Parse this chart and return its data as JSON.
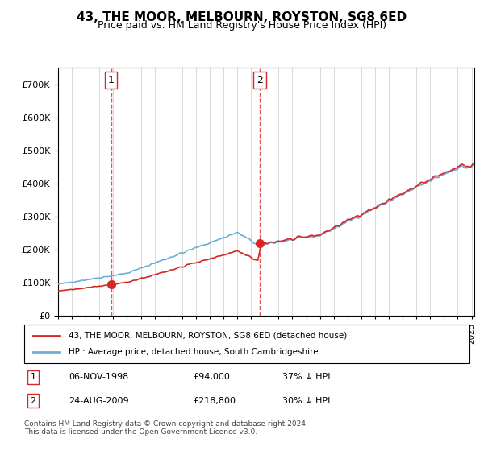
{
  "title": "43, THE MOOR, MELBOURN, ROYSTON, SG8 6ED",
  "subtitle": "Price paid vs. HM Land Registry's House Price Index (HPI)",
  "purchase1_date": "06-NOV-1998",
  "purchase1_price": 94000,
  "purchase1_label": "37% ↓ HPI",
  "purchase1_year": 1998.85,
  "purchase2_date": "24-AUG-2009",
  "purchase2_price": 218800,
  "purchase2_label": "30% ↓ HPI",
  "purchase2_year": 2009.64,
  "legend_line1": "43, THE MOOR, MELBOURN, ROYSTON, SG8 6ED (detached house)",
  "legend_line2": "HPI: Average price, detached house, South Cambridgeshire",
  "footnote": "Contains HM Land Registry data © Crown copyright and database right 2024.\nThis data is licensed under the Open Government Licence v3.0.",
  "hpi_color": "#6baed6",
  "price_color": "#d62728",
  "vline_color": "#d62728",
  "ylim_max": 750000,
  "ylim_min": 0
}
